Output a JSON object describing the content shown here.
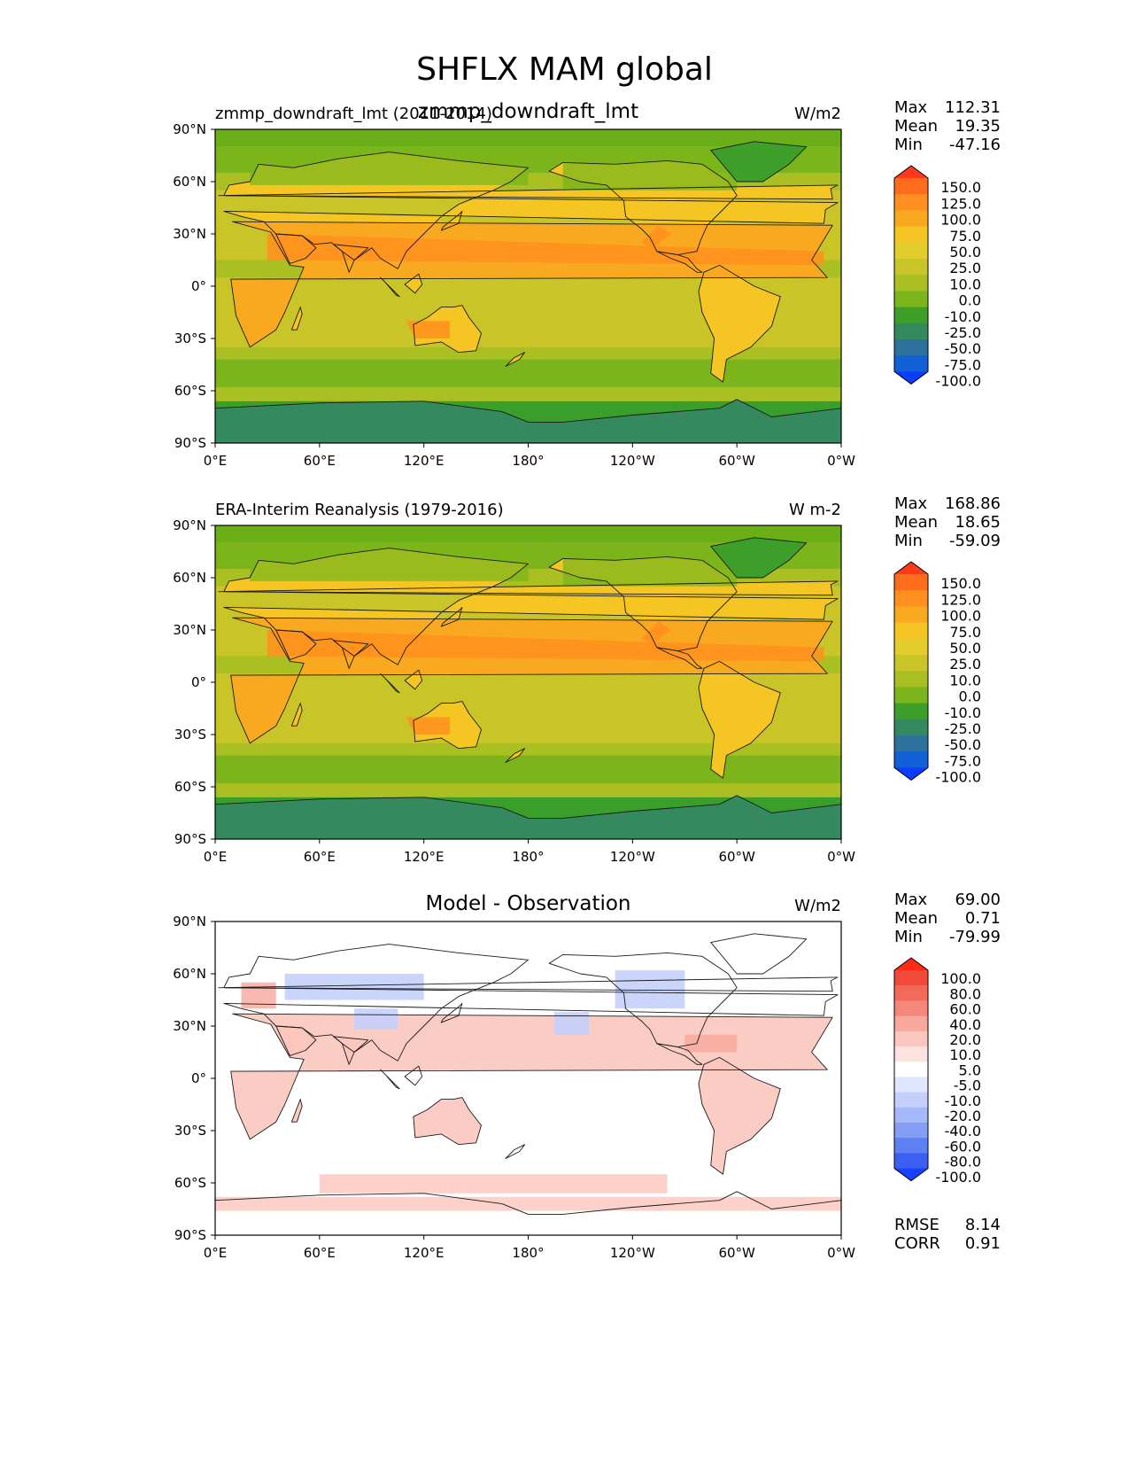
{
  "title": "SHFLX MAM global",
  "colors": {
    "land_warm_1": "#c9c428",
    "ocean_base": "#c9c428",
    "polar_green": "#3a9e2a",
    "antarctic": "#3a8a5f",
    "orange": "#f5a623",
    "diff_red": "#f08080",
    "diff_blue": "#7f9ef5"
  },
  "chart_data": [
    {
      "type": "heatmap",
      "title": "zmmp_downdraft_lmt",
      "subtitle": "zmmp_downdraft_lmt (2011-2014)",
      "units": "W/m2",
      "stats": {
        "max_label": "Max",
        "max": "112.31",
        "mean_label": "Mean",
        "mean": "19.35",
        "min_label": "Min",
        "min": "-47.16"
      },
      "xticks": [
        "0°E",
        "60°E",
        "120°E",
        "180°",
        "120°W",
        "60°W",
        "0°W"
      ],
      "yticks": [
        "90°N",
        "60°N",
        "30°N",
        "0°",
        "30°S",
        "60°S",
        "90°S"
      ],
      "xlim": [
        0,
        360
      ],
      "ylim": [
        -90,
        90
      ],
      "colorbar": {
        "labels": [
          "150.0",
          "125.0",
          "100.0",
          "75.0",
          "50.0",
          "25.0",
          "10.0",
          "0.0",
          "-10.0",
          "-25.0",
          "-50.0",
          "-75.0",
          "-100.0"
        ],
        "colors": [
          "#ff3a1a",
          "#ff6d1c",
          "#ff8f1f",
          "#f9a91f",
          "#f5c524",
          "#e3cd2c",
          "#c9c428",
          "#a9bf22",
          "#7bb51b",
          "#3d9f2a",
          "#348a5e",
          "#2d729c",
          "#1260d8",
          "#0b3cff"
        ]
      }
    },
    {
      "type": "heatmap",
      "title": "",
      "subtitle": "ERA-Interim Reanalysis (1979-2016)",
      "units": "W m-2",
      "stats": {
        "max_label": "Max",
        "max": "168.86",
        "mean_label": "Mean",
        "mean": "18.65",
        "min_label": "Min",
        "min": "-59.09"
      },
      "xticks": [
        "0°E",
        "60°E",
        "120°E",
        "180°",
        "120°W",
        "60°W",
        "0°W"
      ],
      "yticks": [
        "90°N",
        "60°N",
        "30°N",
        "0°",
        "30°S",
        "60°S",
        "90°S"
      ],
      "xlim": [
        0,
        360
      ],
      "ylim": [
        -90,
        90
      ],
      "colorbar": {
        "labels": [
          "150.0",
          "125.0",
          "100.0",
          "75.0",
          "50.0",
          "25.0",
          "10.0",
          "0.0",
          "-10.0",
          "-25.0",
          "-50.0",
          "-75.0",
          "-100.0"
        ],
        "colors": [
          "#ff3a1a",
          "#ff6d1c",
          "#ff8f1f",
          "#f9a91f",
          "#f5c524",
          "#e3cd2c",
          "#c9c428",
          "#a9bf22",
          "#7bb51b",
          "#3d9f2a",
          "#348a5e",
          "#2d729c",
          "#1260d8",
          "#0b3cff"
        ]
      }
    },
    {
      "type": "heatmap",
      "title": "Model - Observation",
      "subtitle": "",
      "units": "W/m2",
      "stats": {
        "max_label": "Max",
        "max": "69.00",
        "mean_label": "Mean",
        "mean": "0.71",
        "min_label": "Min",
        "min": "-79.99"
      },
      "metrics": {
        "rmse_label": "RMSE",
        "rmse": "8.14",
        "corr_label": "CORR",
        "corr": "0.91"
      },
      "xticks": [
        "0°E",
        "60°E",
        "120°E",
        "180°",
        "120°W",
        "60°W",
        "0°W"
      ],
      "yticks": [
        "90°N",
        "60°N",
        "30°N",
        "0°",
        "30°S",
        "60°S",
        "90°S"
      ],
      "xlim": [
        0,
        360
      ],
      "ylim": [
        -90,
        90
      ],
      "colorbar": {
        "labels": [
          "100.0",
          "80.0",
          "60.0",
          "40.0",
          "20.0",
          "10.0",
          "5.0",
          "-5.0",
          "-10.0",
          "-20.0",
          "-40.0",
          "-60.0",
          "-80.0",
          "-100.0"
        ],
        "colors": [
          "#ff2a12",
          "#f24a3a",
          "#f26a5a",
          "#f5877a",
          "#f8a89c",
          "#fbc6bd",
          "#fde3df",
          "#ffffff",
          "#dfe6fd",
          "#c4d0fb",
          "#a5b8f8",
          "#849df5",
          "#5f80f3",
          "#3b60f1",
          "#1740ff"
        ]
      }
    }
  ]
}
